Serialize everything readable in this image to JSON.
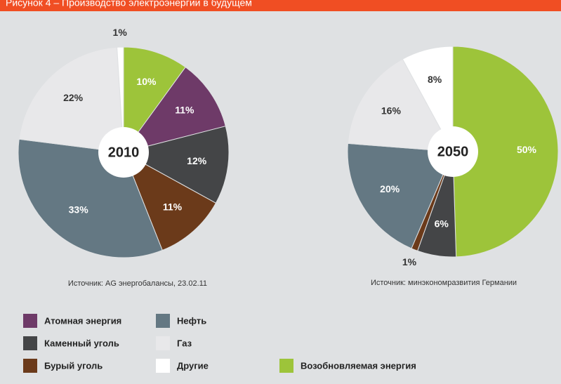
{
  "title": "Рисунок 4 – Производство электроэнергии в будущем",
  "chart_data": [
    {
      "type": "pie",
      "center_label": "2010",
      "source": "Источник: AG энергобалансы, 23.02.11",
      "values": [
        10,
        11,
        12,
        11,
        33,
        22,
        1
      ],
      "value_labels": [
        "10%",
        "11%",
        "12%",
        "11%",
        "33%",
        "22%",
        "1%"
      ],
      "colors": [
        "#9dc43a",
        "#6e3a68",
        "#444547",
        "#6b3a1a",
        "#647883",
        "#e8e8ea",
        "#ffffff"
      ]
    },
    {
      "type": "pie",
      "center_label": "2050",
      "source": "Источник: минэкономразвития Германии",
      "values": [
        50,
        6,
        1,
        20,
        16,
        8
      ],
      "value_labels": [
        "50%",
        "6%",
        "1%",
        "20%",
        "16%",
        "8%"
      ],
      "colors": [
        "#9dc43a",
        "#444547",
        "#6b3a1a",
        "#647883",
        "#e8e8ea",
        "#ffffff"
      ]
    }
  ],
  "legend": [
    {
      "name": "Атомная энергия",
      "color": "#6e3a68"
    },
    {
      "name": "Нефть",
      "color": "#647883"
    },
    {
      "name": "Каменный уголь",
      "color": "#444547"
    },
    {
      "name": "Газ",
      "color": "#e8e8ea"
    },
    {
      "name": "Бурый уголь",
      "color": "#6b3a1a"
    },
    {
      "name": "Другие",
      "color": "#ffffff"
    },
    {
      "name": "Возобновляемая энергия",
      "color": "#9dc43a"
    }
  ]
}
